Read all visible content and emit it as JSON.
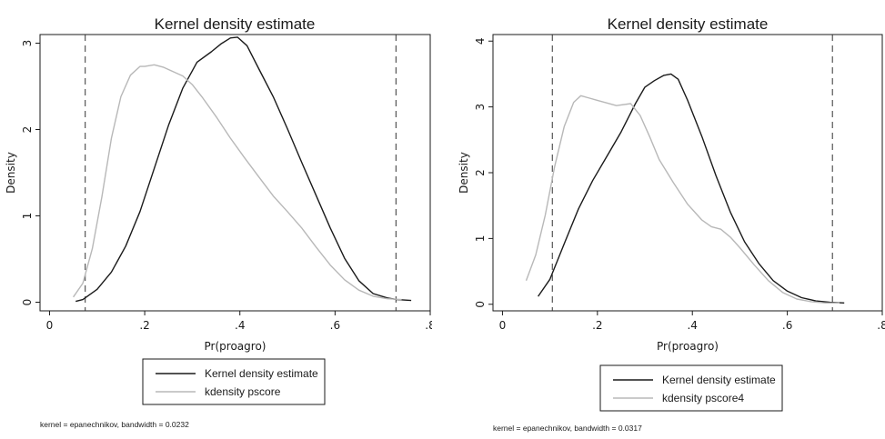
{
  "chart_data": [
    {
      "type": "line",
      "title": "Kernel density estimate",
      "xlabel": "Pr(proagro)",
      "ylabel": "Density",
      "xlim": [
        -0.02,
        0.8
      ],
      "ylim": [
        -0.1,
        3.1
      ],
      "xticks": [
        0,
        0.2,
        0.4,
        0.6,
        0.8
      ],
      "xtick_labels": [
        "0",
        ".2",
        ".4",
        ".6",
        ".8"
      ],
      "yticks": [
        0,
        1,
        2,
        3
      ],
      "ytick_labels": [
        "0",
        "1",
        "2",
        "3"
      ],
      "vlines": [
        0.075,
        0.728
      ],
      "grid": false,
      "legend_position": "bottom",
      "note": "kernel = epanechnikov, bandwidth = 0.0232",
      "series": [
        {
          "name": "Kernel density estimate",
          "color": "#1a1a1a",
          "x": [
            0.055,
            0.07,
            0.1,
            0.13,
            0.16,
            0.19,
            0.22,
            0.25,
            0.28,
            0.31,
            0.34,
            0.36,
            0.38,
            0.395,
            0.415,
            0.44,
            0.47,
            0.5,
            0.53,
            0.56,
            0.59,
            0.62,
            0.65,
            0.68,
            0.71,
            0.73,
            0.76
          ],
          "y": [
            0.01,
            0.03,
            0.15,
            0.35,
            0.65,
            1.05,
            1.55,
            2.05,
            2.48,
            2.78,
            2.9,
            2.99,
            3.06,
            3.07,
            2.97,
            2.7,
            2.38,
            2.01,
            1.62,
            1.24,
            0.86,
            0.51,
            0.25,
            0.1,
            0.05,
            0.03,
            0.02
          ]
        },
        {
          "name": "kdensity pscore",
          "color": "#b8b8b8",
          "x": [
            0.05,
            0.07,
            0.09,
            0.11,
            0.13,
            0.15,
            0.17,
            0.19,
            0.2,
            0.22,
            0.24,
            0.26,
            0.28,
            0.3,
            0.32,
            0.35,
            0.38,
            0.41,
            0.44,
            0.47,
            0.5,
            0.53,
            0.56,
            0.59,
            0.62,
            0.65,
            0.68,
            0.71,
            0.74
          ],
          "y": [
            0.06,
            0.22,
            0.62,
            1.22,
            1.9,
            2.38,
            2.63,
            2.73,
            2.73,
            2.75,
            2.72,
            2.67,
            2.62,
            2.52,
            2.38,
            2.15,
            1.9,
            1.67,
            1.45,
            1.23,
            1.05,
            0.86,
            0.64,
            0.43,
            0.26,
            0.14,
            0.07,
            0.04,
            0.03
          ]
        }
      ]
    },
    {
      "type": "line",
      "title": "Kernel density estimate",
      "xlabel": "Pr(proagro)",
      "ylabel": "Density",
      "xlim": [
        -0.02,
        0.8
      ],
      "ylim": [
        -0.1,
        4.1
      ],
      "xticks": [
        0,
        0.2,
        0.4,
        0.6,
        0.8
      ],
      "xtick_labels": [
        "0",
        ".2",
        ".4",
        ".6",
        ".8"
      ],
      "yticks": [
        0,
        1,
        2,
        3,
        4
      ],
      "ytick_labels": [
        "0",
        "1",
        "2",
        "3",
        "4"
      ],
      "vlines": [
        0.105,
        0.695
      ],
      "grid": false,
      "legend_position": "bottom",
      "note": "kernel = epanechnikov, bandwidth = 0.0317",
      "series": [
        {
          "name": "Kernel density estimate",
          "color": "#1a1a1a",
          "x": [
            0.075,
            0.1,
            0.13,
            0.16,
            0.19,
            0.22,
            0.25,
            0.28,
            0.3,
            0.32,
            0.34,
            0.355,
            0.37,
            0.39,
            0.42,
            0.45,
            0.48,
            0.51,
            0.54,
            0.57,
            0.6,
            0.63,
            0.66,
            0.69,
            0.72
          ],
          "y": [
            0.12,
            0.38,
            0.92,
            1.45,
            1.88,
            2.25,
            2.62,
            3.05,
            3.3,
            3.4,
            3.48,
            3.5,
            3.42,
            3.1,
            2.55,
            1.95,
            1.4,
            0.95,
            0.62,
            0.36,
            0.2,
            0.1,
            0.05,
            0.03,
            0.02
          ]
        },
        {
          "name": "kdensity pscore4",
          "color": "#b8b8b8",
          "x": [
            0.05,
            0.07,
            0.09,
            0.11,
            0.13,
            0.15,
            0.165,
            0.18,
            0.2,
            0.22,
            0.24,
            0.27,
            0.29,
            0.31,
            0.33,
            0.36,
            0.39,
            0.42,
            0.44,
            0.46,
            0.48,
            0.5,
            0.53,
            0.56,
            0.59,
            0.62,
            0.65,
            0.68,
            0.71
          ],
          "y": [
            0.36,
            0.75,
            1.35,
            2.1,
            2.7,
            3.07,
            3.17,
            3.14,
            3.1,
            3.06,
            3.02,
            3.05,
            2.87,
            2.55,
            2.2,
            1.85,
            1.52,
            1.28,
            1.18,
            1.14,
            1.02,
            0.86,
            0.6,
            0.36,
            0.18,
            0.08,
            0.04,
            0.02,
            0.02
          ]
        }
      ]
    }
  ]
}
